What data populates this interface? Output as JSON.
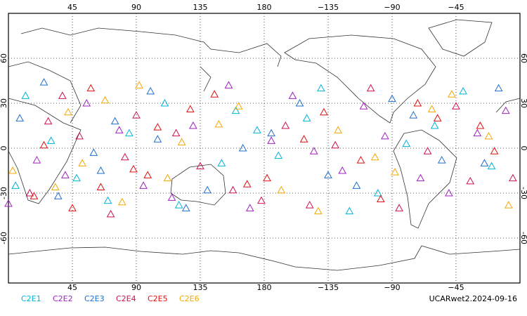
{
  "chart_data": {
    "type": "scatter",
    "subtitle": "UCARwet2.2024-09-16",
    "xlim": [
      0,
      360
    ],
    "ylim": [
      -90,
      90
    ],
    "xticks": [
      45,
      90,
      135,
      180,
      {
        "value": -135,
        "label": "−135"
      },
      {
        "value": -90,
        "label": "−90"
      },
      {
        "value": -45,
        "label": "−45"
      }
    ],
    "yticks": [
      -60,
      -30,
      0,
      30,
      60
    ],
    "grid": true,
    "series": [
      {
        "name": "C2E1",
        "color": "#00b4d8",
        "lon": [
          12,
          48,
          85,
          120,
          160,
          -170,
          -140,
          -100,
          -60,
          -20,
          30,
          70,
          110,
          150,
          -150,
          -120,
          -80,
          -40,
          5,
          175
        ],
        "lat": [
          35,
          -20,
          10,
          -38,
          25,
          -5,
          40,
          -30,
          15,
          -12,
          5,
          -35,
          30,
          -10,
          20,
          -42,
          3,
          38,
          -25,
          12
        ]
      },
      {
        "name": "C2E2",
        "color": "#a020c0",
        "lon": [
          20,
          55,
          95,
          130,
          170,
          -160,
          -125,
          -95,
          -50,
          -10,
          40,
          78,
          115,
          155,
          -145,
          -110,
          -70,
          -30,
          0,
          -175
        ],
        "lat": [
          -8,
          30,
          -25,
          15,
          -40,
          35,
          -15,
          8,
          -30,
          25,
          -18,
          12,
          -33,
          42,
          -2,
          28,
          -20,
          10,
          -37,
          5
        ]
      },
      {
        "name": "C2E3",
        "color": "#1e6fd0",
        "lon": [
          8,
          60,
          100,
          140,
          -175,
          -135,
          -90,
          -55,
          -15,
          35,
          75,
          125,
          165,
          -155,
          -115,
          -75,
          -25,
          25,
          65,
          105
        ],
        "lat": [
          20,
          -3,
          38,
          -28,
          10,
          -18,
          33,
          -8,
          40,
          -32,
          18,
          -40,
          0,
          30,
          -25,
          22,
          -10,
          44,
          -15,
          6
        ]
      },
      {
        "name": "C2E4",
        "color": "#d0104a",
        "lon": [
          15,
          50,
          90,
          135,
          178,
          -165,
          -130,
          -85,
          -45,
          -5,
          38,
          82,
          118,
          158,
          -148,
          -105,
          -65,
          -35,
          28,
          72
        ],
        "lat": [
          -30,
          8,
          22,
          -12,
          -35,
          15,
          2,
          -40,
          28,
          -20,
          35,
          -6,
          10,
          -28,
          -38,
          40,
          -2,
          -22,
          18,
          -44
        ]
      },
      {
        "name": "C2E5",
        "color": "#e01010",
        "lon": [
          25,
          65,
          105,
          145,
          -178,
          -138,
          -98,
          -58,
          -18,
          45,
          88,
          128,
          168,
          -152,
          -112,
          -72,
          -28,
          18,
          58,
          98
        ],
        "lat": [
          2,
          -26,
          14,
          36,
          -20,
          24,
          -34,
          20,
          -2,
          -40,
          -14,
          26,
          -24,
          6,
          -8,
          30,
          15,
          -32,
          40,
          -18
        ]
      },
      {
        "name": "C2E6",
        "color": "#f5a800",
        "lon": [
          3,
          42,
          80,
          122,
          162,
          -168,
          -128,
          -88,
          -48,
          -8,
          33,
          68,
          112,
          148,
          -142,
          -102,
          -62,
          -22,
          52,
          92
        ],
        "lat": [
          -15,
          24,
          -36,
          4,
          28,
          -28,
          12,
          -16,
          36,
          -38,
          -26,
          32,
          -20,
          16,
          -42,
          -6,
          26,
          8,
          -10,
          42
        ]
      }
    ]
  }
}
